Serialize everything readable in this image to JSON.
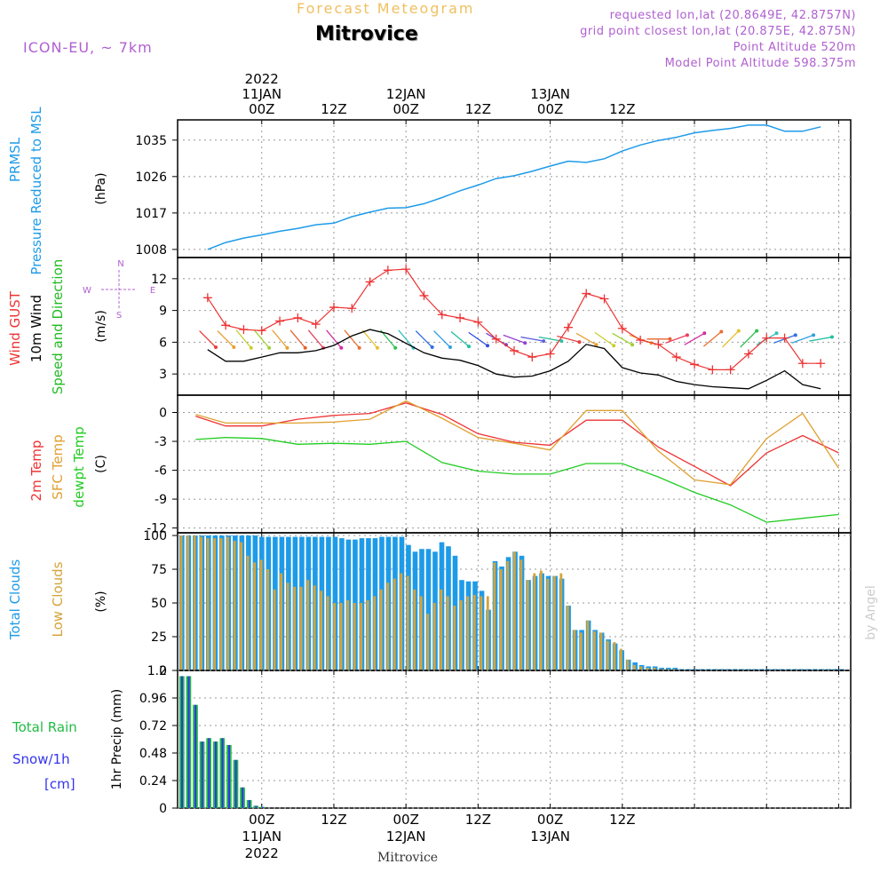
{
  "header": {
    "product": "Forecast Meteogram",
    "location": "Mitrovice",
    "model": "ICON-EU, ~ 7km",
    "requested": "requested lon,lat (20.8649E, 42.8757N)",
    "grid_point": "grid point closest lon,lat (20.875E, 42.875N)",
    "point_altitude": "Point Altitude 520m",
    "model_altitude": "Model Point Altitude 598.375m",
    "footer_location": "Mitrovice",
    "credit": "by Angel"
  },
  "colors": {
    "pressure": "#1e9be8",
    "gust": "#ee3333",
    "wind": "#000000",
    "dir": "#22bb22",
    "t2m": "#ee3333",
    "sfc": "#e0a030",
    "dewpt": "#22cc22",
    "total_cloud": "#1e9be8",
    "low_cloud": "#d4a43a",
    "rain": "#22bb44",
    "snow": "#3333ee",
    "model": "#b060d0",
    "product": "#f0c060"
  },
  "chart_data": [
    {
      "id": "pressure",
      "type": "line",
      "title": "PRMSL Pressure Reduced to MSL",
      "ylabel": "(hPa)",
      "ylim": [
        1006,
        1040
      ],
      "yticks": [
        1008,
        1017,
        1026,
        1035
      ],
      "x_hours": [
        3,
        6,
        9,
        12,
        15,
        18,
        21,
        24,
        27,
        30,
        33,
        36,
        39,
        42,
        45,
        48,
        51,
        54,
        57,
        60,
        63,
        66,
        69,
        72,
        75,
        78,
        81,
        84,
        87,
        90,
        93,
        96,
        99,
        102,
        105
      ],
      "series": [
        {
          "name": "PRMSL",
          "values": [
            1008.0,
            1009.7,
            1010.8,
            1011.6,
            1012.5,
            1013.2,
            1014.1,
            1014.5,
            1016.1,
            1017.2,
            1018.2,
            1018.3,
            1019.3,
            1020.8,
            1022.5,
            1023.9,
            1025.5,
            1026.2,
            1027.3,
            1028.6,
            1029.8,
            1029.5,
            1030.4,
            1032.3,
            1033.8,
            1034.9,
            1035.7,
            1036.8,
            1037.4,
            1037.9,
            1038.7,
            1038.7,
            1037.2,
            1037.2,
            1038.3
          ]
        }
      ],
      "grid": true
    },
    {
      "id": "wind",
      "type": "line",
      "title": "Wind GUST / 10m Wind Speed and Direction",
      "ylabel": "(m/s)",
      "ylim": [
        1,
        14
      ],
      "yticks": [
        3,
        6,
        9,
        12
      ],
      "compass": [
        "N",
        "E",
        "S",
        "W"
      ],
      "x_hours": [
        3,
        6,
        9,
        12,
        15,
        18,
        21,
        24,
        27,
        30,
        33,
        36,
        39,
        42,
        45,
        48,
        51,
        54,
        57,
        60,
        63,
        66,
        69,
        72,
        75,
        78,
        81,
        84,
        87,
        90,
        93,
        96,
        99,
        102,
        105
      ],
      "series": [
        {
          "name": "Wind GUST",
          "values": [
            10.2,
            7.6,
            7.2,
            7.1,
            8.0,
            8.3,
            7.7,
            9.3,
            9.2,
            11.7,
            12.8,
            12.9,
            10.4,
            8.6,
            8.3,
            7.9,
            6.3,
            5.2,
            4.6,
            4.9,
            7.4,
            10.6,
            10.1,
            7.3,
            6.2,
            5.8,
            4.6,
            3.9,
            3.4,
            3.4,
            4.9,
            6.4,
            6.4,
            4.0,
            4.0
          ]
        },
        {
          "name": "10m Wind",
          "values": [
            5.3,
            4.2,
            4.2,
            4.6,
            5.0,
            5.0,
            5.2,
            5.7,
            6.6,
            7.2,
            6.8,
            5.9,
            5.0,
            4.5,
            4.3,
            3.8,
            3.0,
            2.7,
            2.8,
            3.3,
            4.2,
            5.8,
            5.4,
            3.6,
            3.1,
            2.9,
            2.3,
            2.0,
            1.8,
            1.7,
            1.6,
            2.4,
            3.3,
            2.0,
            1.6
          ]
        }
      ],
      "direction_speed": 6.3,
      "direction_deg": [
        315,
        315,
        320,
        320,
        320,
        320,
        320,
        320,
        320,
        320,
        320,
        320,
        315,
        315,
        310,
        305,
        300,
        290,
        280,
        280,
        285,
        300,
        305,
        300,
        290,
        270,
        250,
        240,
        230,
        225,
        225,
        240,
        250,
        250,
        260
      ],
      "direction_colors": [
        "#e84040",
        "#e8a030",
        "#c8d030",
        "#a0d030",
        "#e8a030",
        "#e86030",
        "#e84060",
        "#d030a0",
        "#e87030",
        "#e8c030",
        "#30c050",
        "#30c0c0",
        "#3070e0",
        "#30a0e0",
        "#20c0a0",
        "#3050e0",
        "#7040d0",
        "#9040d0",
        "#6060e0",
        "#30c0a0"
      ],
      "grid": true
    },
    {
      "id": "temp",
      "type": "line",
      "title": "2m Temp / SFC Temp / dewpt Temp",
      "ylabel": "(C)",
      "ylim": [
        -12.5,
        1.8
      ],
      "yticks": [
        -12,
        -9,
        -6,
        -3,
        0
      ],
      "x_hours": [
        1,
        6,
        12,
        18,
        24,
        30,
        36,
        42,
        48,
        54,
        60,
        66,
        72,
        78,
        84,
        90,
        96,
        102,
        108
      ],
      "series": [
        {
          "name": "2m Temp",
          "values": [
            -0.4,
            -1.4,
            -1.4,
            -0.7,
            -0.3,
            -0.1,
            1.0,
            -0.2,
            -2.2,
            -3.1,
            -3.4,
            -0.8,
            -0.8,
            -3.6,
            -5.6,
            -7.6,
            -4.2,
            -2.4,
            -4.2
          ]
        },
        {
          "name": "SFC Temp",
          "values": [
            -0.2,
            -1.1,
            -1.1,
            -1.1,
            -1.0,
            -0.7,
            1.2,
            -0.6,
            -2.6,
            -3.2,
            -3.9,
            0.2,
            0.2,
            -4.0,
            -7.0,
            -7.5,
            -2.7,
            -0.1,
            -5.8
          ]
        },
        {
          "name": "dewpt Temp",
          "values": [
            -2.8,
            -2.6,
            -2.7,
            -3.3,
            -3.2,
            -3.3,
            -3.0,
            -5.2,
            -6.1,
            -6.4,
            -6.4,
            -5.3,
            -5.3,
            -6.7,
            -8.3,
            -9.6,
            -11.4,
            -11.0,
            -10.6
          ]
        }
      ],
      "grid": true
    },
    {
      "id": "clouds",
      "type": "bar",
      "title": "Total Clouds / Low Clouds",
      "ylabel": "(%)",
      "ylim": [
        0,
        102
      ],
      "yticks": [
        0,
        25,
        50,
        75,
        100
      ],
      "start_hour": 0,
      "series": [
        {
          "name": "Total Clouds",
          "values": [
            100,
            100,
            100,
            100,
            100,
            100,
            100,
            100,
            100,
            100,
            100,
            100,
            99,
            99,
            99,
            99,
            99,
            99,
            99,
            99,
            99,
            99,
            99,
            99,
            98,
            97,
            97,
            98,
            98,
            98,
            99,
            99,
            99,
            99,
            93,
            88,
            90,
            90,
            88,
            95,
            92,
            85,
            67,
            66,
            66,
            59,
            45,
            81,
            77,
            84,
            88,
            85,
            67,
            70,
            72,
            70,
            70,
            68,
            48,
            30,
            30,
            37,
            30,
            28,
            23,
            20,
            15,
            8,
            6,
            4,
            3,
            3,
            2,
            2,
            2,
            1,
            1,
            1,
            1,
            1,
            1,
            1,
            1,
            1,
            1,
            1,
            1,
            1,
            1,
            1,
            1,
            1,
            1,
            1,
            1,
            1,
            1,
            1,
            1,
            1,
            1
          ]
        },
        {
          "name": "Low Clouds",
          "values": [
            100,
            100,
            100,
            99,
            98,
            98,
            98,
            99,
            96,
            95,
            85,
            80,
            82,
            75,
            60,
            72,
            65,
            62,
            62,
            67,
            63,
            59,
            55,
            50,
            50,
            52,
            50,
            50,
            52,
            55,
            60,
            65,
            68,
            72,
            70,
            60,
            55,
            42,
            50,
            60,
            55,
            48,
            52,
            55,
            56,
            55,
            55,
            80,
            75,
            81,
            88,
            82,
            67,
            72,
            74,
            68,
            70,
            72,
            48,
            30,
            28,
            37,
            29,
            28,
            22,
            21,
            16,
            8,
            4,
            3,
            2,
            2,
            1,
            1,
            1,
            0,
            0,
            0,
            0,
            0,
            0,
            0,
            0,
            0,
            0,
            0,
            0,
            0,
            0,
            0,
            0,
            0,
            0,
            0,
            0,
            0,
            0,
            0,
            0,
            0,
            0
          ]
        }
      ],
      "grid": true
    },
    {
      "id": "precip",
      "type": "bar",
      "title": "Total Rain / Snow/1h [cm]",
      "ylabel": "1hr Precip (mm)",
      "ylim": [
        0,
        1.2
      ],
      "yticks": [
        0,
        0.24,
        0.48,
        0.72,
        0.96,
        1.2
      ],
      "start_hour": 0,
      "series": [
        {
          "name": "Total Rain",
          "values": [
            1.15,
            1.15,
            0.9,
            0.58,
            0.61,
            0.58,
            0.61,
            0.55,
            0.42,
            0.18,
            0.07,
            0.02,
            0.01,
            0,
            0,
            0,
            0,
            0,
            0,
            0,
            0,
            0,
            0,
            0,
            0,
            0,
            0,
            0,
            0,
            0,
            0,
            0,
            0,
            0,
            0,
            0,
            0,
            0,
            0,
            0,
            0,
            0,
            0,
            0,
            0,
            0,
            0,
            0,
            0,
            0,
            0,
            0,
            0,
            0,
            0,
            0,
            0,
            0,
            0,
            0,
            0,
            0,
            0,
            0,
            0,
            0,
            0,
            0,
            0,
            0,
            0,
            0,
            0,
            0,
            0,
            0,
            0,
            0,
            0,
            0,
            0,
            0,
            0,
            0,
            0,
            0,
            0,
            0,
            0,
            0,
            0,
            0,
            0,
            0,
            0,
            0,
            0,
            0,
            0,
            0
          ]
        },
        {
          "name": "Snow/1h",
          "values": [
            1.15,
            1.15,
            0.9,
            0.58,
            0.61,
            0.58,
            0.61,
            0.55,
            0.42,
            0.18,
            0.07,
            0.02,
            0.01,
            0,
            0,
            0,
            0,
            0,
            0,
            0,
            0,
            0,
            0,
            0,
            0,
            0,
            0,
            0,
            0,
            0,
            0,
            0,
            0,
            0,
            0,
            0,
            0,
            0,
            0,
            0,
            0,
            0,
            0,
            0,
            0,
            0,
            0,
            0,
            0,
            0,
            0,
            0,
            0,
            0,
            0,
            0,
            0,
            0,
            0,
            0,
            0,
            0,
            0,
            0,
            0,
            0,
            0,
            0,
            0,
            0,
            0,
            0,
            0,
            0,
            0,
            0,
            0,
            0,
            0,
            0,
            0,
            0,
            0,
            0,
            0,
            0,
            0,
            0,
            0,
            0,
            0,
            0,
            0,
            0,
            0,
            0,
            0,
            0,
            0,
            0,
            0
          ]
        }
      ],
      "grid": true
    }
  ],
  "time_axis": {
    "top": [
      {
        "hour": 12,
        "lines": [
          "2022",
          "11JAN",
          "00Z"
        ]
      },
      {
        "hour": 24,
        "lines": [
          "12Z"
        ]
      },
      {
        "hour": 36,
        "lines": [
          "12JAN",
          "00Z"
        ]
      },
      {
        "hour": 48,
        "lines": [
          "12Z"
        ]
      },
      {
        "hour": 60,
        "lines": [
          "13JAN",
          "00Z"
        ]
      },
      {
        "hour": 72,
        "lines": [
          "12Z"
        ]
      }
    ],
    "bottom": [
      {
        "hour": 12,
        "lines": [
          "00Z",
          "11JAN",
          "2022"
        ]
      },
      {
        "hour": 24,
        "lines": [
          "12Z"
        ]
      },
      {
        "hour": 36,
        "lines": [
          "00Z",
          "12JAN"
        ]
      },
      {
        "hour": 48,
        "lines": [
          "12Z"
        ]
      },
      {
        "hour": 60,
        "lines": [
          "00Z",
          "13JAN"
        ]
      },
      {
        "hour": 72,
        "lines": [
          "12Z"
        ]
      }
    ]
  },
  "panel_labels": {
    "pressure": [
      "PRMSL",
      "Pressure Reduced to MSL"
    ],
    "wind": [
      "Wind GUST",
      "10m Wind",
      "Speed and Direction"
    ],
    "temp": [
      "2m Temp",
      "SFC Temp",
      "dewpt Temp"
    ],
    "clouds": [
      "Total Clouds",
      "Low Clouds"
    ],
    "precip": [
      "Total  Rain",
      "Snow/1h",
      "[cm]"
    ]
  }
}
